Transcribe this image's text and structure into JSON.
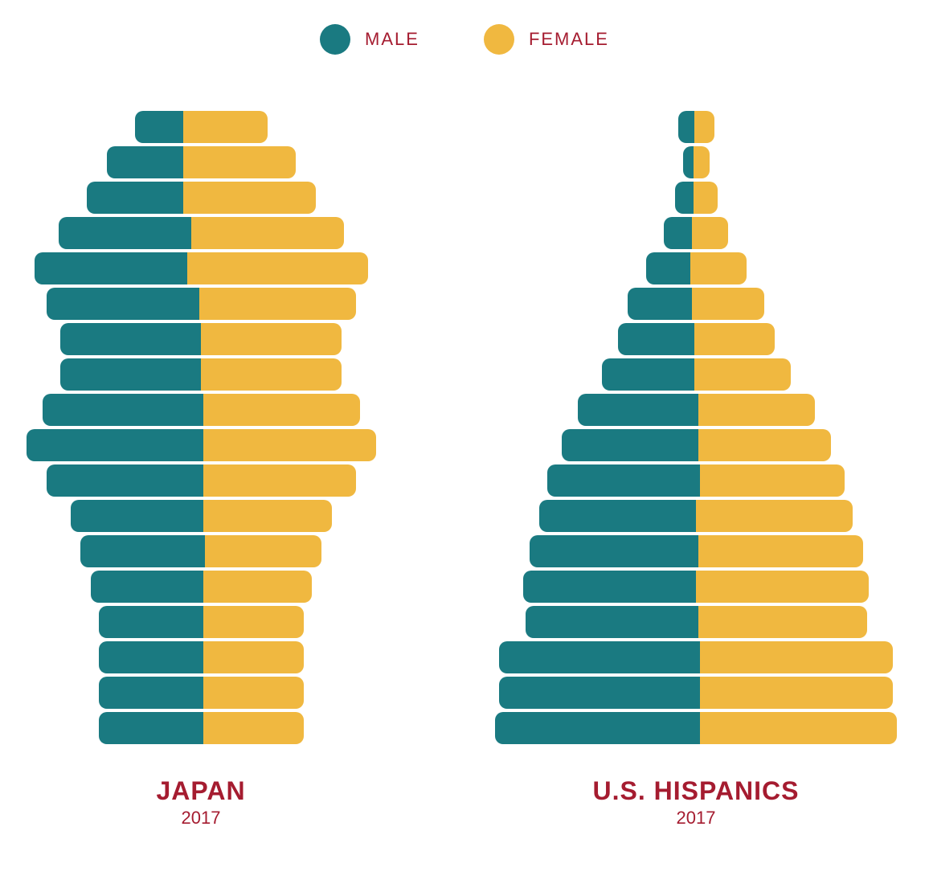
{
  "colors": {
    "male": "#1a7a81",
    "female": "#f0b840",
    "text": "#a51c30",
    "background": "#ffffff"
  },
  "legend": {
    "male_label": "MALE",
    "female_label": "FEMALE",
    "fontsize": 22
  },
  "bar_style": {
    "height": 40,
    "gap": 4,
    "border_radius": 10
  },
  "title_style": {
    "main_fontsize": 32,
    "main_weight": 700,
    "sub_fontsize": 22
  },
  "pyramids": [
    {
      "title": "JAPAN",
      "subtitle": "2017",
      "max_half_width": 220,
      "rows": [
        {
          "male": 60,
          "female": 105
        },
        {
          "male": 95,
          "female": 140
        },
        {
          "male": 120,
          "female": 165
        },
        {
          "male": 165,
          "female": 190
        },
        {
          "male": 190,
          "female": 225
        },
        {
          "male": 190,
          "female": 195
        },
        {
          "male": 175,
          "female": 175
        },
        {
          "male": 175,
          "female": 175
        },
        {
          "male": 200,
          "female": 195
        },
        {
          "male": 220,
          "female": 215
        },
        {
          "male": 195,
          "female": 190
        },
        {
          "male": 165,
          "female": 160
        },
        {
          "male": 155,
          "female": 145
        },
        {
          "male": 140,
          "female": 135
        },
        {
          "male": 130,
          "female": 125
        },
        {
          "male": 130,
          "female": 125
        },
        {
          "male": 130,
          "female": 125
        },
        {
          "male": 130,
          "female": 125
        }
      ]
    },
    {
      "title": "U.S. HISPANICS",
      "subtitle": "2017",
      "max_half_width": 260,
      "rows": [
        {
          "male": 20,
          "female": 25
        },
        {
          "male": 13,
          "female": 20
        },
        {
          "male": 23,
          "female": 30
        },
        {
          "male": 35,
          "female": 45
        },
        {
          "male": 55,
          "female": 70
        },
        {
          "male": 80,
          "female": 90
        },
        {
          "male": 95,
          "female": 100
        },
        {
          "male": 115,
          "female": 120
        },
        {
          "male": 150,
          "female": 145
        },
        {
          "male": 170,
          "female": 165
        },
        {
          "male": 190,
          "female": 180
        },
        {
          "male": 195,
          "female": 195
        },
        {
          "male": 210,
          "female": 205
        },
        {
          "male": 215,
          "female": 215
        },
        {
          "male": 215,
          "female": 210
        },
        {
          "male": 250,
          "female": 240
        },
        {
          "male": 250,
          "female": 240
        },
        {
          "male": 255,
          "female": 245
        }
      ]
    }
  ]
}
